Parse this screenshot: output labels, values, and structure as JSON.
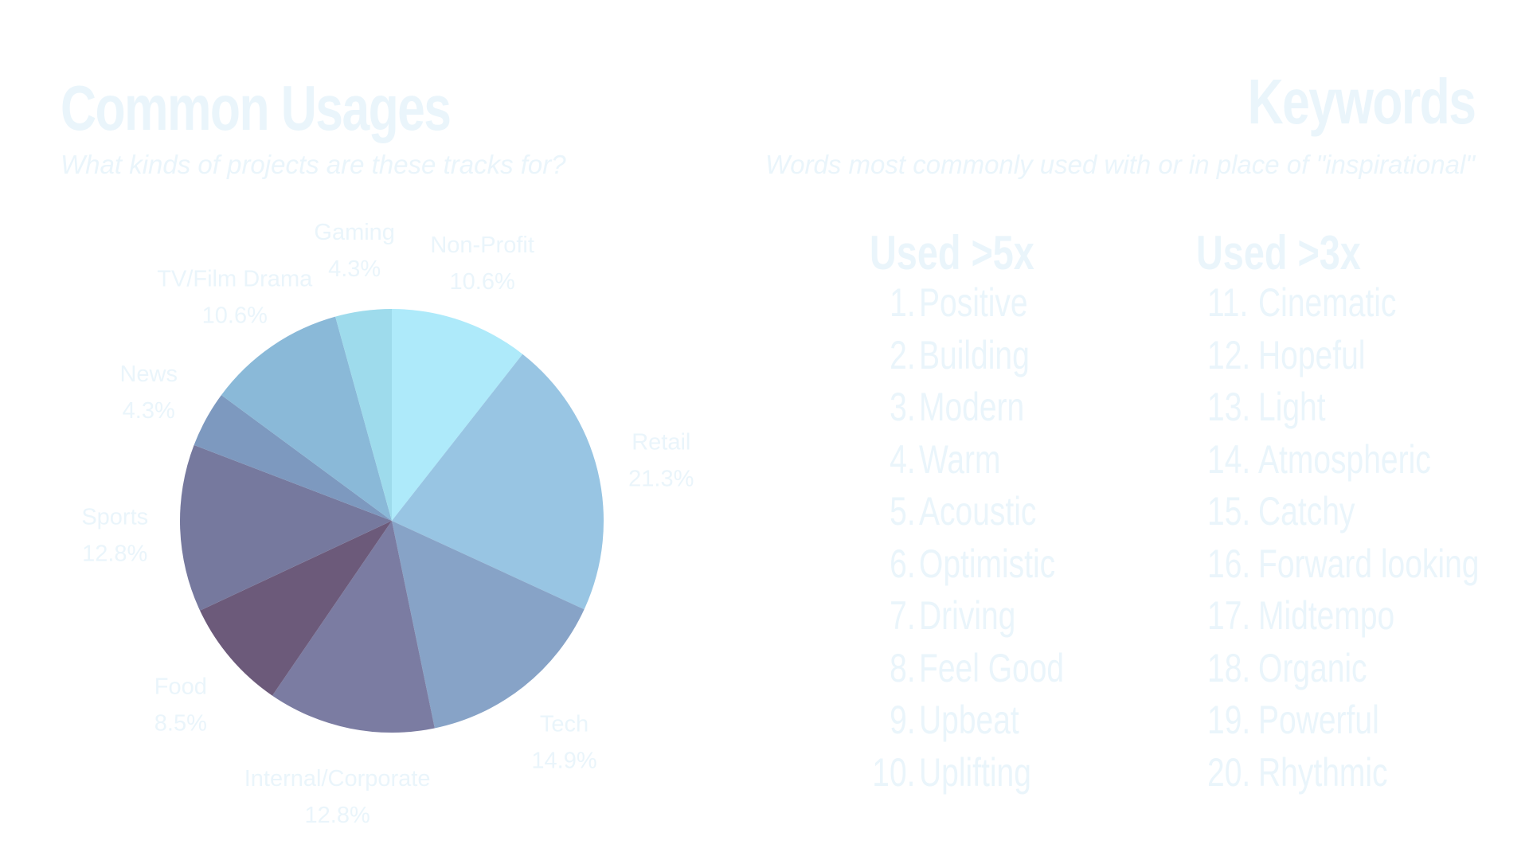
{
  "left": {
    "title": "Common Usages",
    "subtitle": "What kinds of projects are these tracks for?"
  },
  "right": {
    "title": "Keywords",
    "subtitle": "Words most commonly used with or in place of \"inspirational\""
  },
  "chart_data": {
    "type": "pie",
    "title": "Common Usages",
    "subtitle": "What kinds of projects are these tracks for?",
    "slices": [
      {
        "label": "Non-Profit",
        "value": 10.6,
        "display": "10.6%",
        "color": "#aeeafa"
      },
      {
        "label": "Retail",
        "value": 21.3,
        "display": "21.3%",
        "color": "#98c5e3"
      },
      {
        "label": "Tech",
        "value": 14.9,
        "display": "14.9%",
        "color": "#87a3c7"
      },
      {
        "label": "Internal/Corporate",
        "value": 12.8,
        "display": "12.8%",
        "color": "#7b7ca2"
      },
      {
        "label": "Food",
        "value": 8.5,
        "display": "8.5%",
        "color": "#6c5a7a"
      },
      {
        "label": "Sports",
        "value": 12.8,
        "display": "12.8%",
        "color": "#76799e"
      },
      {
        "label": "News",
        "value": 4.3,
        "display": "4.3%",
        "color": "#7d99bf"
      },
      {
        "label": "TV/Film Drama",
        "value": 10.6,
        "display": "10.6%",
        "color": "#8ab9d8"
      },
      {
        "label": "Gaming",
        "value": 4.3,
        "display": "4.3%",
        "color": "#9edbec"
      }
    ],
    "label_color": "#eaf5fb"
  },
  "keywords": {
    "used_5x": {
      "heading": "Used >5x",
      "items": [
        {
          "num": "1.",
          "word": "Positive"
        },
        {
          "num": "2.",
          "word": "Building"
        },
        {
          "num": "3.",
          "word": "Modern"
        },
        {
          "num": "4.",
          "word": "Warm"
        },
        {
          "num": "5.",
          "word": "Acoustic"
        },
        {
          "num": "6.",
          "word": "Optimistic"
        },
        {
          "num": "7.",
          "word": "Driving"
        },
        {
          "num": "8.",
          "word": "Feel Good"
        },
        {
          "num": "9.",
          "word": "Upbeat"
        },
        {
          "num": "10.",
          "word": "Uplifting"
        }
      ]
    },
    "used_3x": {
      "heading": "Used >3x",
      "items": [
        {
          "num": "11.",
          "word": "Cinematic"
        },
        {
          "num": "12.",
          "word": "Hopeful"
        },
        {
          "num": "13.",
          "word": "Light"
        },
        {
          "num": "14.",
          "word": "Atmospheric"
        },
        {
          "num": "15.",
          "word": "Catchy"
        },
        {
          "num": "16.",
          "word": "Forward looking"
        },
        {
          "num": "17.",
          "word": "Midtempo"
        },
        {
          "num": "18.",
          "word": "Organic"
        },
        {
          "num": "19.",
          "word": "Powerful"
        },
        {
          "num": "20.",
          "word": "Rhythmic"
        }
      ]
    }
  },
  "theme": {
    "text_color": "#eaf5fb",
    "background": "#ffffff"
  }
}
